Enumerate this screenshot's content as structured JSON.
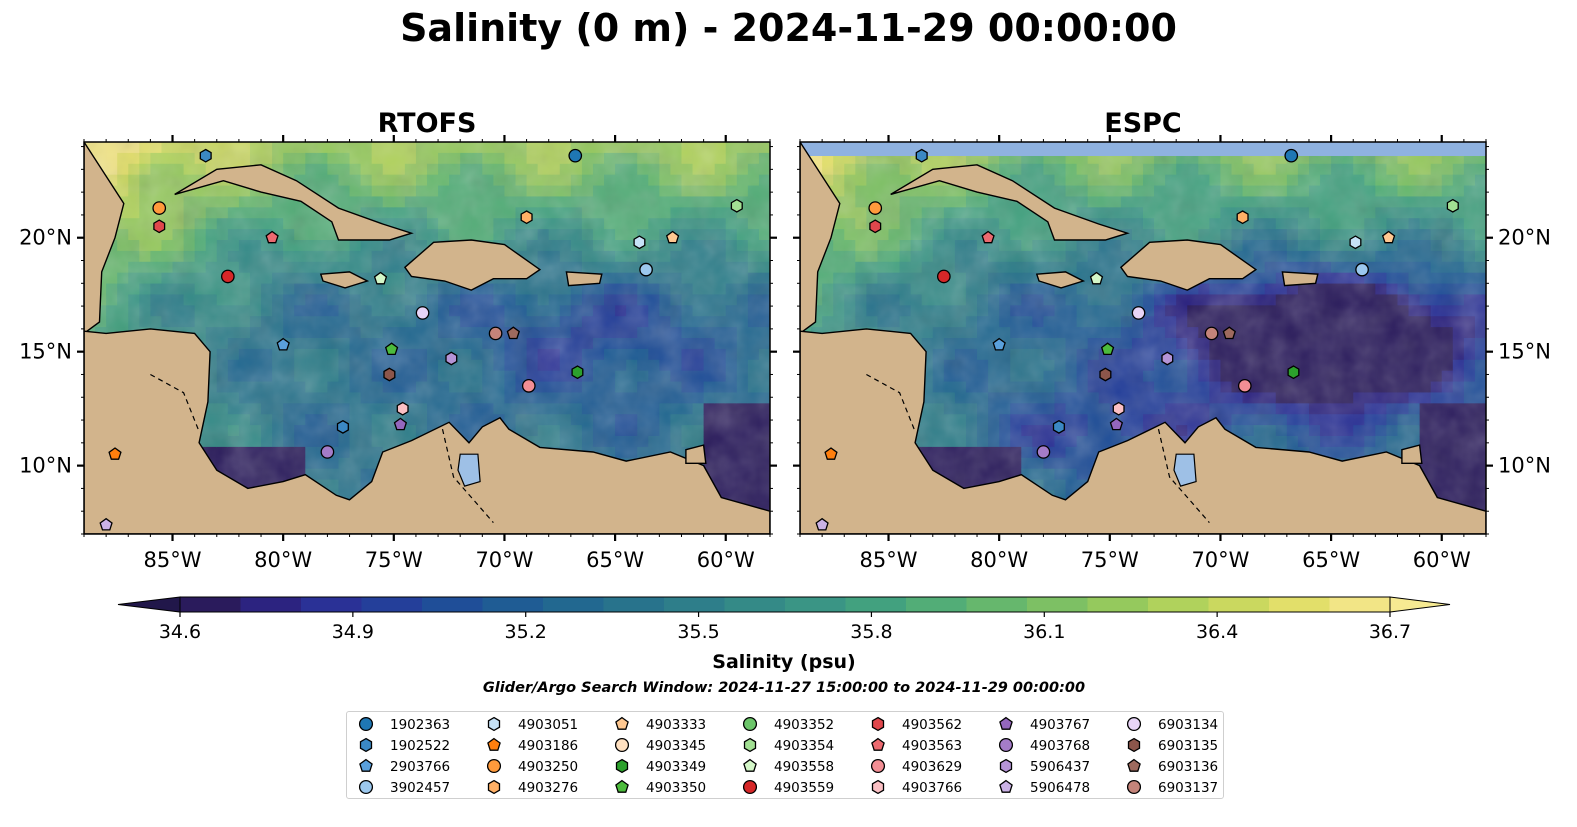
{
  "figure": {
    "title": "Salinity (0 m) - 2024-11-29 00:00:00",
    "search_window": "Glider/Argo Search Window: 2024-11-27 15:00:00 to 2024-11-29 00:00:00"
  },
  "panels": [
    {
      "title": "RTOFS",
      "nan_band": false
    },
    {
      "title": "ESPC",
      "nan_band": true
    }
  ],
  "map": {
    "lon_range": [
      -89,
      -58
    ],
    "lat_range": [
      7,
      24.2
    ],
    "lon_ticks": [
      "85°W",
      "80°W",
      "75°W",
      "70°W",
      "65°W",
      "60°W"
    ],
    "lat_ticks": [
      "20°N",
      "15°N",
      "10°N"
    ],
    "land_color": "#d2b48c",
    "nan_color": "#8fb2e0",
    "lake_color": "#9ec0e6"
  },
  "colorbar": {
    "label": "Salinity (psu)",
    "ticks": [
      "34.6",
      "34.9",
      "35.2",
      "35.5",
      "35.8",
      "36.1",
      "36.4",
      "36.7"
    ],
    "vmin": 34.6,
    "vmax": 36.7,
    "colors": [
      "#2a1b5c",
      "#2c2380",
      "#2a3196",
      "#243f9a",
      "#1f4e98",
      "#1f5c94",
      "#226890",
      "#28738c",
      "#2e7e8a",
      "#348a87",
      "#3a9585",
      "#42a17f",
      "#52ad77",
      "#66b76d",
      "#7dc064",
      "#95c95d",
      "#b0d25c",
      "#cad85f",
      "#e2df6a",
      "#f2e586"
    ]
  },
  "legend": {
    "entries": [
      {
        "id": "1902363",
        "marker": "circle",
        "color": "#1f77b4"
      },
      {
        "id": "1902522",
        "marker": "hexagon",
        "color": "#3b88c4"
      },
      {
        "id": "2903766",
        "marker": "pentagon",
        "color": "#5aa0dc"
      },
      {
        "id": "3902457",
        "marker": "circle",
        "color": "#9cc8ee"
      },
      {
        "id": "4903051",
        "marker": "hexagon",
        "color": "#c6e2f7"
      },
      {
        "id": "4903186",
        "marker": "pentagon",
        "color": "#ff7f0e"
      },
      {
        "id": "4903250",
        "marker": "circle",
        "color": "#ff9a3c"
      },
      {
        "id": "4903276",
        "marker": "hexagon",
        "color": "#ffb066"
      },
      {
        "id": "4903333",
        "marker": "pentagon",
        "color": "#ffc891"
      },
      {
        "id": "4903345",
        "marker": "circle",
        "color": "#ffe0c0"
      },
      {
        "id": "4903349",
        "marker": "hexagon",
        "color": "#2ca02c"
      },
      {
        "id": "4903350",
        "marker": "pentagon",
        "color": "#4cbb3c"
      },
      {
        "id": "4903352",
        "marker": "circle",
        "color": "#6cc66a"
      },
      {
        "id": "4903354",
        "marker": "hexagon",
        "color": "#a2e093"
      },
      {
        "id": "4903558",
        "marker": "pentagon",
        "color": "#d4f7c8"
      },
      {
        "id": "4903559",
        "marker": "circle",
        "color": "#d62728"
      },
      {
        "id": "4903562",
        "marker": "hexagon",
        "color": "#e0474c"
      },
      {
        "id": "4903563",
        "marker": "pentagon",
        "color": "#ec6a70"
      },
      {
        "id": "4903629",
        "marker": "circle",
        "color": "#f28e94"
      },
      {
        "id": "4903766",
        "marker": "hexagon",
        "color": "#fbc0c4"
      },
      {
        "id": "4903767",
        "marker": "pentagon",
        "color": "#9467bd"
      },
      {
        "id": "4903768",
        "marker": "circle",
        "color": "#a47cc8"
      },
      {
        "id": "5906437",
        "marker": "hexagon",
        "color": "#b594d6"
      },
      {
        "id": "5906478",
        "marker": "pentagon",
        "color": "#cbb2e6"
      },
      {
        "id": "6903134",
        "marker": "circle",
        "color": "#e8d4f7"
      },
      {
        "id": "6903135",
        "marker": "hexagon",
        "color": "#8c564b"
      },
      {
        "id": "6903136",
        "marker": "pentagon",
        "color": "#9e6a5e"
      },
      {
        "id": "6903137",
        "marker": "circle",
        "color": "#c4847a"
      }
    ]
  },
  "floats": [
    {
      "id": "1902363",
      "lon": -66.8,
      "lat": 23.6
    },
    {
      "id": "1902522",
      "lon": -83.5,
      "lat": 23.6
    },
    {
      "id": "4903250",
      "lon": -85.6,
      "lat": 21.3
    },
    {
      "id": "4903562",
      "lon": -85.6,
      "lat": 20.5
    },
    {
      "id": "4903563",
      "lon": -80.5,
      "lat": 20.0
    },
    {
      "id": "4903559",
      "lon": -82.5,
      "lat": 18.3
    },
    {
      "id": "4903354",
      "lon": -59.5,
      "lat": 21.4
    },
    {
      "id": "4903276",
      "lon": -69.0,
      "lat": 20.9
    },
    {
      "id": "4903333",
      "lon": -62.4,
      "lat": 20.0
    },
    {
      "id": "4903051",
      "lon": -63.9,
      "lat": 19.8
    },
    {
      "id": "3902457",
      "lon": -63.6,
      "lat": 18.6
    },
    {
      "id": "4903558",
      "lon": -75.6,
      "lat": 18.2
    },
    {
      "id": "6903134",
      "lon": -73.7,
      "lat": 16.7
    },
    {
      "id": "2903766",
      "lon": -80.0,
      "lat": 15.3
    },
    {
      "id": "4903350",
      "lon": -75.1,
      "lat": 15.1
    },
    {
      "id": "6903137",
      "lon": -70.4,
      "lat": 15.8
    },
    {
      "id": "6903136",
      "lon": -69.6,
      "lat": 15.8
    },
    {
      "id": "5906437",
      "lon": -72.4,
      "lat": 14.7
    },
    {
      "id": "4903349",
      "lon": -66.7,
      "lat": 14.1
    },
    {
      "id": "6903135",
      "lon": -75.2,
      "lat": 14.0
    },
    {
      "id": "4903629",
      "lon": -68.9,
      "lat": 13.5
    },
    {
      "id": "4903766",
      "lon": -74.6,
      "lat": 12.5
    },
    {
      "id": "4903767",
      "lon": -74.7,
      "lat": 11.8
    },
    {
      "id": "1902522",
      "lon": -77.3,
      "lat": 11.7
    },
    {
      "id": "4903768",
      "lon": -78.0,
      "lat": 10.6
    },
    {
      "id": "4903186",
      "lon": -87.6,
      "lat": 10.5
    },
    {
      "id": "5906478",
      "lon": -88.0,
      "lat": 7.4
    }
  ]
}
